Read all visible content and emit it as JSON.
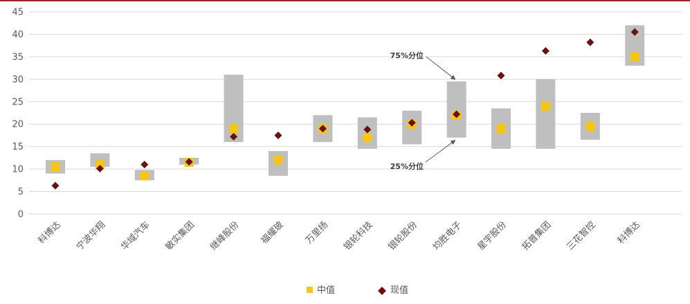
{
  "chart_data": {
    "type": "scatter",
    "categories": [
      "科博达",
      "宁波华翔",
      "华域汽车",
      "敏实集团",
      "继峰股份",
      "福耀玻",
      "万里扬",
      "银轮科技",
      "银轮股份",
      "均胜电子",
      "星宇股份",
      "拓普集团",
      "三花智控",
      "科博达"
    ],
    "ylim": [
      0,
      45
    ],
    "yticks": [
      0,
      5,
      10,
      15,
      20,
      25,
      30,
      35,
      40,
      45
    ],
    "grid": true,
    "range_25": [
      9,
      10.5,
      7.5,
      11,
      16,
      8.5,
      16,
      14.5,
      15.5,
      17,
      14.5,
      14.5,
      16.5,
      33
    ],
    "range_75": [
      12,
      13.5,
      9.8,
      12.5,
      31,
      14,
      22,
      21.5,
      23,
      29.5,
      23.5,
      30,
      22.5,
      42
    ],
    "series": [
      {
        "name": "中值",
        "color": "#f5c518",
        "values": [
          10.5,
          11,
          8.5,
          11.5,
          19,
          12,
          19,
          17,
          20,
          22,
          19,
          24,
          19.5,
          35
        ]
      },
      {
        "name": "现值",
        "color": "#6b0f0f",
        "values": [
          6.3,
          10.1,
          11,
          11.6,
          17.2,
          17.5,
          19,
          18.8,
          20.3,
          22.2,
          30.8,
          36.3,
          38.2,
          40.5
        ]
      }
    ],
    "annotations": [
      {
        "text": "75%分位",
        "target": "均胜电子.range_75"
      },
      {
        "text": "25%分位",
        "target": "均胜电子.range_25"
      }
    ],
    "legend_position": "bottom"
  },
  "colors": {
    "range_bar": "#bfbfbf",
    "grid": "#d9d9d9",
    "frame": "#8c2a2a"
  }
}
